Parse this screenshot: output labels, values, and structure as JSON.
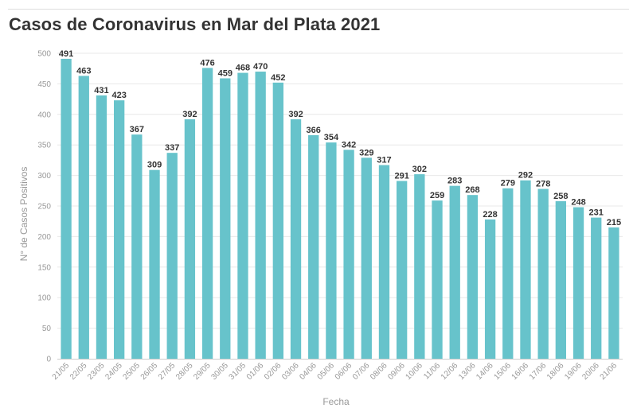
{
  "chart_data": {
    "type": "bar",
    "title": "Casos de Coronavirus en Mar del Plata 2021",
    "xlabel": "Fecha",
    "ylabel": "N° de Casos Positivos",
    "ylim": [
      0,
      500
    ],
    "yticks": [
      0,
      50,
      100,
      150,
      200,
      250,
      300,
      350,
      400,
      450,
      500
    ],
    "grid": true,
    "categories": [
      "21/05",
      "22/05",
      "23/05",
      "24/05",
      "25/05",
      "26/05",
      "27/05",
      "28/05",
      "29/05",
      "30/05",
      "31/05",
      "01/06",
      "02/06",
      "03/06",
      "04/06",
      "05/06",
      "06/06",
      "07/06",
      "08/06",
      "09/06",
      "10/06",
      "11/06",
      "12/06",
      "13/06",
      "14/06",
      "15/06",
      "16/06",
      "17/06",
      "18/06",
      "19/06",
      "20/06",
      "21/06"
    ],
    "values": [
      491,
      463,
      431,
      423,
      367,
      309,
      337,
      392,
      476,
      459,
      468,
      470,
      452,
      392,
      366,
      354,
      342,
      329,
      317,
      291,
      302,
      259,
      283,
      268,
      228,
      279,
      292,
      278,
      258,
      248,
      231,
      215
    ],
    "bar_color": "#67c3cb"
  }
}
